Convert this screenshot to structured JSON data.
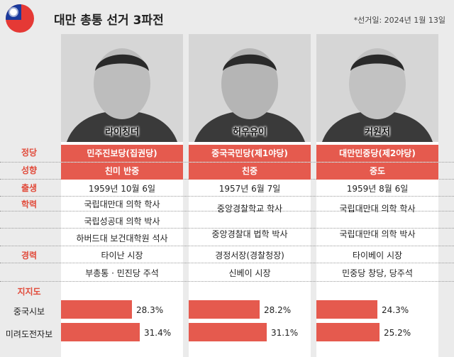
{
  "header": {
    "title": "대만 총통 선거 3파전",
    "note": "*선거일: 2024년 1월 13일"
  },
  "colors": {
    "accent": "#e55a4e",
    "label_red": "#e14b3b",
    "flag_red": "#e53935",
    "flag_blue": "#1a3a9c"
  },
  "row_labels": {
    "party": "정당",
    "leaning": "성향",
    "birth": "출생",
    "education": "학력",
    "career": "경력",
    "support": "지지도",
    "poll1": "중국시보",
    "poll2": "미려도전자보"
  },
  "candidates": [
    {
      "name": "라이칭더",
      "party": "민주진보당(집권당)",
      "leaning": "친미 반중",
      "birth": "1959년 10월 6일",
      "education": [
        "국립대만대 의학 학사",
        "국립성공대 의학 박사",
        "하버드대 보건대학원 석사"
      ],
      "career": [
        "타이난 시장",
        "부총통 · 민진당 주석"
      ],
      "poll1_label": "28.3%",
      "poll1": 28.3,
      "poll2_label": "31.4%",
      "poll2": 31.4
    },
    {
      "name": "허우유이",
      "party": "중국국민당(제1야당)",
      "leaning": "친중",
      "birth": "1957년 6월 7일",
      "education": [
        "중앙경찰학교 학사",
        "중앙경찰대 법학 박사"
      ],
      "career": [
        "경정서장(경찰청장)",
        "신베이 시장"
      ],
      "poll1_label": "28.2%",
      "poll1": 28.2,
      "poll2_label": "31.1%",
      "poll2": 31.1
    },
    {
      "name": "커원저",
      "party": "대만민중당(제2야당)",
      "leaning": "중도",
      "birth": "1959년 8월 6일",
      "education": [
        "국립대만대 의학 학사",
        "국립대만대 의학 박사"
      ],
      "career": [
        "타이베이 시장",
        "민중당 창당, 당주석"
      ],
      "poll1_label": "24.3%",
      "poll1": 24.3,
      "poll2_label": "25.2%",
      "poll2": 25.2
    }
  ]
}
